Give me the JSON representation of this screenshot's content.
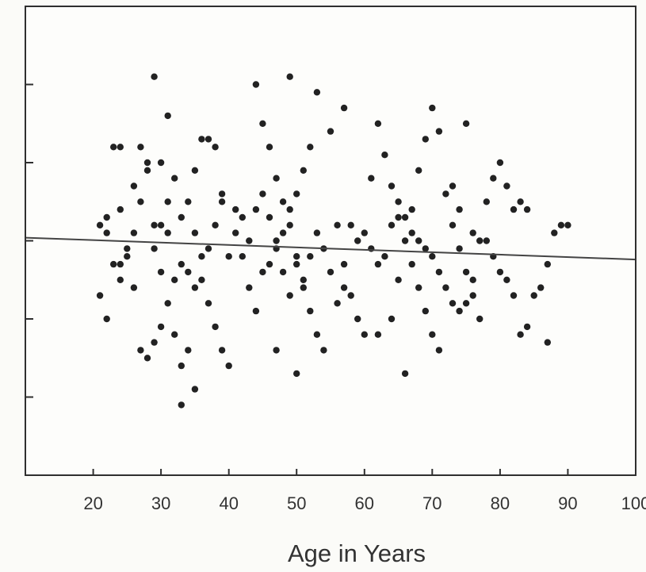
{
  "chart_data": {
    "type": "scatter",
    "title": "",
    "xlabel": "Age in Years",
    "ylabel": "",
    "xlim": [
      10,
      100
    ],
    "ylim": [
      -3,
      3
    ],
    "x_ticks": [
      20,
      30,
      40,
      50,
      60,
      70,
      80,
      90,
      100
    ],
    "x_tick_labels": [
      "20",
      "30",
      "40",
      "50",
      "60",
      "70",
      "80",
      "90",
      "100"
    ],
    "y_ticks": [
      -2,
      -1,
      0,
      1,
      2
    ],
    "y_tick_labels": [
      "",
      "",
      "",
      "",
      ""
    ],
    "grid": false,
    "legend": "none",
    "colors": {
      "background": "#fbfbf8",
      "points": "#222222",
      "axis": "#2f2f2f",
      "text": "#333333"
    },
    "series": [
      {
        "values": [
          [
            21,
            0.2
          ],
          [
            22,
            0.1
          ],
          [
            23,
            -0.3
          ],
          [
            21,
            -0.7
          ],
          [
            22,
            -1.0
          ],
          [
            24,
            0.4
          ],
          [
            25,
            -0.1
          ],
          [
            26,
            0.7
          ],
          [
            27,
            1.2
          ],
          [
            28,
            0.9
          ],
          [
            29,
            0.2
          ],
          [
            30,
            -0.4
          ],
          [
            31,
            -0.8
          ],
          [
            32,
            -1.2
          ],
          [
            33,
            -1.6
          ],
          [
            34,
            -1.4
          ],
          [
            35,
            -1.9
          ],
          [
            33,
            -2.1
          ],
          [
            29,
            2.1
          ],
          [
            31,
            1.6
          ],
          [
            32,
            0.8
          ],
          [
            34,
            0.5
          ],
          [
            35,
            0.1
          ],
          [
            36,
            -0.2
          ],
          [
            37,
            -0.8
          ],
          [
            38,
            -1.1
          ],
          [
            39,
            -1.4
          ],
          [
            40,
            -1.6
          ],
          [
            28,
            -1.5
          ],
          [
            27,
            -1.4
          ],
          [
            29,
            -1.3
          ],
          [
            30,
            -1.1
          ],
          [
            26,
            -0.6
          ],
          [
            25,
            -0.2
          ],
          [
            24,
            -0.5
          ],
          [
            23,
            1.2
          ],
          [
            24,
            1.2
          ],
          [
            28,
            1.0
          ],
          [
            30,
            1.0
          ],
          [
            31,
            0.5
          ],
          [
            33,
            0.3
          ],
          [
            35,
            0.9
          ],
          [
            36,
            1.3
          ],
          [
            37,
            1.3
          ],
          [
            38,
            1.2
          ],
          [
            39,
            0.6
          ],
          [
            41,
            0.1
          ],
          [
            42,
            -0.2
          ],
          [
            43,
            -0.6
          ],
          [
            44,
            -0.9
          ],
          [
            45,
            1.5
          ],
          [
            46,
            1.2
          ],
          [
            47,
            0.8
          ],
          [
            48,
            0.5
          ],
          [
            49,
            0.2
          ],
          [
            50,
            -0.2
          ],
          [
            51,
            -0.6
          ],
          [
            52,
            -0.9
          ],
          [
            53,
            -1.2
          ],
          [
            54,
            -1.4
          ],
          [
            50,
            -1.7
          ],
          [
            47,
            -1.4
          ],
          [
            45,
            -0.4
          ],
          [
            44,
            2.0
          ],
          [
            49,
            2.1
          ],
          [
            53,
            1.9
          ],
          [
            57,
            1.7
          ],
          [
            55,
            1.4
          ],
          [
            52,
            1.2
          ],
          [
            51,
            0.9
          ],
          [
            50,
            0.6
          ],
          [
            49,
            0.4
          ],
          [
            48,
            0.1
          ],
          [
            47,
            -0.1
          ],
          [
            46,
            -0.3
          ],
          [
            56,
            0.2
          ],
          [
            57,
            -0.3
          ],
          [
            58,
            -0.7
          ],
          [
            59,
            -1.0
          ],
          [
            60,
            -1.2
          ],
          [
            61,
            0.8
          ],
          [
            62,
            1.5
          ],
          [
            63,
            1.1
          ],
          [
            64,
            0.7
          ],
          [
            65,
            0.3
          ],
          [
            66,
            0.0
          ],
          [
            67,
            -0.3
          ],
          [
            68,
            -0.6
          ],
          [
            69,
            -0.9
          ],
          [
            70,
            -1.2
          ],
          [
            71,
            -1.4
          ],
          [
            66,
            -1.7
          ],
          [
            62,
            -1.2
          ],
          [
            64,
            -1.0
          ],
          [
            65,
            -0.5
          ],
          [
            67,
            0.4
          ],
          [
            68,
            0.9
          ],
          [
            69,
            1.3
          ],
          [
            70,
            1.7
          ],
          [
            71,
            1.4
          ],
          [
            72,
            0.6
          ],
          [
            73,
            0.2
          ],
          [
            74,
            -0.1
          ],
          [
            75,
            -0.4
          ],
          [
            76,
            -0.7
          ],
          [
            77,
            -1.0
          ],
          [
            75,
            1.5
          ],
          [
            73,
            0.7
          ],
          [
            74,
            0.4
          ],
          [
            76,
            0.1
          ],
          [
            78,
            0.0
          ],
          [
            79,
            -0.2
          ],
          [
            80,
            -0.4
          ],
          [
            81,
            -0.5
          ],
          [
            82,
            -0.7
          ],
          [
            83,
            -1.2
          ],
          [
            84,
            -1.1
          ],
          [
            85,
            -0.7
          ],
          [
            86,
            -0.6
          ],
          [
            87,
            -1.3
          ],
          [
            88,
            0.1
          ],
          [
            89,
            0.2
          ],
          [
            90,
            0.2
          ],
          [
            83,
            0.5
          ],
          [
            84,
            0.4
          ],
          [
            87,
            -0.3
          ],
          [
            22,
            0.3
          ],
          [
            24,
            -0.3
          ],
          [
            26,
            0.1
          ],
          [
            27,
            0.5
          ],
          [
            29,
            -0.1
          ],
          [
            30,
            0.2
          ],
          [
            31,
            0.1
          ],
          [
            32,
            -0.5
          ],
          [
            33,
            -0.3
          ],
          [
            34,
            -0.4
          ],
          [
            35,
            -0.6
          ],
          [
            36,
            -0.5
          ],
          [
            37,
            -0.1
          ],
          [
            38,
            0.2
          ],
          [
            39,
            0.5
          ],
          [
            40,
            -0.2
          ],
          [
            41,
            0.4
          ],
          [
            42,
            0.3
          ],
          [
            43,
            0.0
          ],
          [
            44,
            0.4
          ],
          [
            45,
            0.6
          ],
          [
            46,
            0.3
          ],
          [
            47,
            0.0
          ],
          [
            48,
            -0.4
          ],
          [
            49,
            -0.7
          ],
          [
            50,
            -0.3
          ],
          [
            51,
            -0.5
          ],
          [
            52,
            -0.2
          ],
          [
            53,
            0.1
          ],
          [
            54,
            -0.1
          ],
          [
            55,
            -0.4
          ],
          [
            56,
            -0.8
          ],
          [
            57,
            -0.6
          ],
          [
            58,
            0.2
          ],
          [
            59,
            0.0
          ],
          [
            60,
            0.1
          ],
          [
            61,
            -0.1
          ],
          [
            62,
            -0.3
          ],
          [
            63,
            -0.2
          ],
          [
            64,
            0.2
          ],
          [
            65,
            0.5
          ],
          [
            66,
            0.3
          ],
          [
            67,
            0.1
          ],
          [
            68,
            0.0
          ],
          [
            69,
            -0.1
          ],
          [
            70,
            -0.2
          ],
          [
            71,
            -0.4
          ],
          [
            72,
            -0.6
          ],
          [
            73,
            -0.8
          ],
          [
            74,
            -0.9
          ],
          [
            75,
            -0.8
          ],
          [
            76,
            -0.5
          ],
          [
            77,
            0.0
          ],
          [
            78,
            0.5
          ],
          [
            79,
            0.8
          ],
          [
            80,
            1.0
          ],
          [
            81,
            0.7
          ],
          [
            82,
            0.4
          ]
        ]
      }
    ],
    "trend_line": {
      "x": [
        10,
        100
      ],
      "y": [
        0.04,
        -0.24
      ]
    }
  }
}
